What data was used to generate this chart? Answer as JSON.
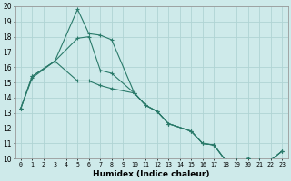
{
  "xlabel": "Humidex (Indice chaleur)",
  "xlim": [
    -0.5,
    23.5
  ],
  "ylim": [
    10,
    20
  ],
  "yticks": [
    10,
    11,
    12,
    13,
    14,
    15,
    16,
    17,
    18,
    19,
    20
  ],
  "xticks": [
    0,
    1,
    2,
    3,
    4,
    5,
    6,
    7,
    8,
    9,
    10,
    11,
    12,
    13,
    14,
    15,
    16,
    17,
    18,
    19,
    20,
    21,
    22,
    23
  ],
  "bg_color": "#ceeaea",
  "grid_major_color": "#b0d4d4",
  "grid_minor_color": "#c4e2e2",
  "line_color": "#2a7a6a",
  "line1_x": [
    0,
    1,
    3,
    5,
    6,
    7,
    8,
    10,
    11,
    12,
    13,
    15,
    16,
    17,
    18,
    19,
    20,
    21,
    22,
    23
  ],
  "line1_y": [
    13.3,
    15.4,
    16.4,
    19.8,
    18.2,
    18.1,
    17.8,
    14.3,
    13.5,
    13.1,
    12.3,
    11.8,
    11.0,
    10.9,
    9.9,
    9.9,
    10.0,
    9.9,
    9.9,
    10.5
  ],
  "line2_x": [
    0,
    1,
    3,
    5,
    6,
    7,
    8,
    10,
    11,
    12,
    13,
    15,
    16,
    17,
    18,
    19,
    20,
    21,
    22,
    23
  ],
  "line2_y": [
    13.3,
    15.4,
    16.4,
    17.9,
    18.0,
    15.8,
    15.6,
    14.3,
    13.5,
    13.1,
    12.3,
    11.8,
    11.0,
    10.9,
    9.9,
    9.9,
    10.0,
    9.9,
    9.9,
    10.5
  ],
  "line3_x": [
    0,
    1,
    3,
    5,
    6,
    7,
    8,
    10,
    11,
    12,
    13,
    15,
    16,
    17,
    18,
    19,
    20,
    21,
    22,
    23
  ],
  "line3_y": [
    13.3,
    15.3,
    16.4,
    15.1,
    15.1,
    14.8,
    14.6,
    14.3,
    13.5,
    13.1,
    12.3,
    11.8,
    11.0,
    10.9,
    9.9,
    9.9,
    10.0,
    9.9,
    9.9,
    10.5
  ]
}
